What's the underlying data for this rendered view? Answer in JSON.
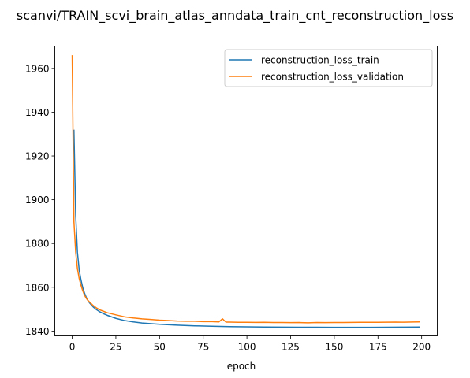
{
  "chart_data": {
    "type": "line",
    "title": "scanvi/TRAIN_scvi_brain_atlas_anndata_train_cnt_reconstruction_loss",
    "xlabel": "epoch",
    "ylabel": "",
    "xlim": [
      -9.95,
      208.95
    ],
    "ylim": [
      1837.8,
      1970.2
    ],
    "xticks": [
      0,
      25,
      50,
      75,
      100,
      125,
      150,
      175,
      200
    ],
    "xtick_labels": [
      "0",
      "25",
      "50",
      "75",
      "100",
      "125",
      "150",
      "175",
      "200"
    ],
    "yticks": [
      1840,
      1860,
      1880,
      1900,
      1920,
      1940,
      1960
    ],
    "ytick_labels": [
      "1840",
      "1860",
      "1880",
      "1900",
      "1920",
      "1940",
      "1960"
    ],
    "grid": false,
    "legend": "top-right",
    "series": [
      {
        "name": "reconstruction_loss_train",
        "color": "#1f77b4",
        "x": [
          1,
          2,
          3,
          4,
          5,
          6,
          7,
          8,
          9,
          10,
          12,
          14,
          16,
          18,
          20,
          25,
          30,
          35,
          40,
          50,
          60,
          70,
          80,
          90,
          100,
          110,
          120,
          130,
          140,
          150,
          160,
          170,
          180,
          190,
          199
        ],
        "y": [
          1932,
          1893,
          1876,
          1868,
          1863.5,
          1860,
          1857.5,
          1855.5,
          1854,
          1852.8,
          1851,
          1849.7,
          1848.7,
          1847.9,
          1847.2,
          1845.8,
          1844.8,
          1844.2,
          1843.7,
          1843.1,
          1842.7,
          1842.4,
          1842.2,
          1842.05,
          1841.95,
          1841.85,
          1841.8,
          1841.75,
          1841.75,
          1841.7,
          1841.7,
          1841.7,
          1841.75,
          1841.8,
          1841.85
        ]
      },
      {
        "name": "reconstruction_loss_validation",
        "color": "#ff7f0e",
        "x": [
          0,
          1,
          2,
          3,
          4,
          5,
          6,
          7,
          8,
          9,
          10,
          12,
          14,
          16,
          18,
          20,
          25,
          30,
          35,
          40,
          45,
          50,
          55,
          60,
          65,
          70,
          75,
          80,
          84,
          86,
          88,
          90,
          95,
          100,
          105,
          110,
          115,
          120,
          125,
          130,
          135,
          140,
          145,
          150,
          155,
          160,
          165,
          170,
          175,
          180,
          185,
          190,
          195,
          199
        ],
        "y": [
          1966,
          1890,
          1876,
          1868.5,
          1864,
          1861,
          1858.5,
          1856.5,
          1855,
          1854,
          1853.2,
          1851.7,
          1850.5,
          1849.6,
          1849,
          1848.4,
          1847.4,
          1846.5,
          1846,
          1845.6,
          1845.3,
          1845,
          1844.8,
          1844.6,
          1844.5,
          1844.5,
          1844.3,
          1844.3,
          1844.2,
          1845.6,
          1844.1,
          1844.1,
          1844,
          1844,
          1843.95,
          1844,
          1843.9,
          1843.9,
          1843.85,
          1843.9,
          1843.8,
          1843.9,
          1843.85,
          1843.9,
          1843.9,
          1843.95,
          1844,
          1844,
          1844,
          1844.05,
          1844.1,
          1844.05,
          1844.15,
          1844.2
        ]
      }
    ]
  }
}
